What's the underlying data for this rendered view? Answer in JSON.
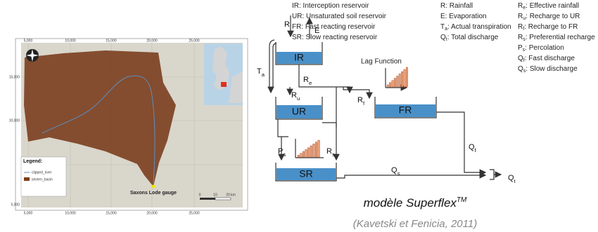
{
  "map": {
    "x_labels": [
      "5,000",
      "10,000",
      "15,000",
      "20,000",
      "25,000"
    ],
    "y_labels": [
      "15,000",
      "10,000",
      "5,000"
    ],
    "legend_title": "Legend:",
    "legend_items": [
      "clipped_river",
      "severn_basin"
    ],
    "gauge_label": "Saxons Lode gauge",
    "scale_labels": [
      "0",
      "10",
      "20 km"
    ]
  },
  "diagram": {
    "reservoirs": [
      "IR",
      "UR",
      "FR",
      "SR"
    ],
    "lag_label": "Lag Function",
    "fluxes": [
      {
        "main": "R"
      },
      {
        "main": "E"
      },
      {
        "main": "T",
        "sub": "a"
      },
      {
        "main": "R",
        "sub": "e"
      },
      {
        "main": "R",
        "sub": "u"
      },
      {
        "main": "R",
        "sub": "f"
      },
      {
        "main": "P",
        "sub": "s"
      },
      {
        "main": "R",
        "sub": "s"
      },
      {
        "main": "Q",
        "sub": "f"
      },
      {
        "main": "Q",
        "sub": "s"
      },
      {
        "main": "Q",
        "sub": "t"
      }
    ],
    "legend": [
      [
        {
          "sym": "IR",
          "desc": ": Interception reservoir"
        },
        {
          "sym": "UR",
          "desc": ": Unsaturated soil reservoir"
        },
        {
          "sym": "FR",
          "desc": ": Fast reacting reservoir"
        },
        {
          "sym": "SR",
          "desc": ": Slow reacting reservoir"
        }
      ],
      [
        {
          "sym": "R",
          "desc": ": Rainfall"
        },
        {
          "sym": "E",
          "desc": ": Evaporation"
        },
        {
          "sym": "T",
          "sub": "a",
          "desc": ": Actual transpiration"
        },
        {
          "sym": "Q",
          "sub": "t",
          "desc": ": Total discharge"
        }
      ],
      [
        {
          "sym": "R",
          "sub": "e",
          "desc": ": Effective rainfall"
        },
        {
          "sym": "R",
          "sub": "u",
          "desc": ": Recharge to UR"
        },
        {
          "sym": "R",
          "sub": "f",
          "desc": ": Recharge to FR"
        },
        {
          "sym": "R",
          "sub": "s",
          "desc": ": Preferential recharge"
        },
        {
          "sym": "P",
          "sub": "s",
          "desc": ": Percolation"
        },
        {
          "sym": "Q",
          "sub": "f",
          "desc": ": Fast discharge"
        },
        {
          "sym": "Q",
          "sub": "s",
          "desc": ": Slow discharge"
        }
      ]
    ],
    "caption": {
      "main": "modèle Superflex",
      "sup": "TM"
    },
    "citation": "(Kavetski et Fenicia, 2011)"
  }
}
